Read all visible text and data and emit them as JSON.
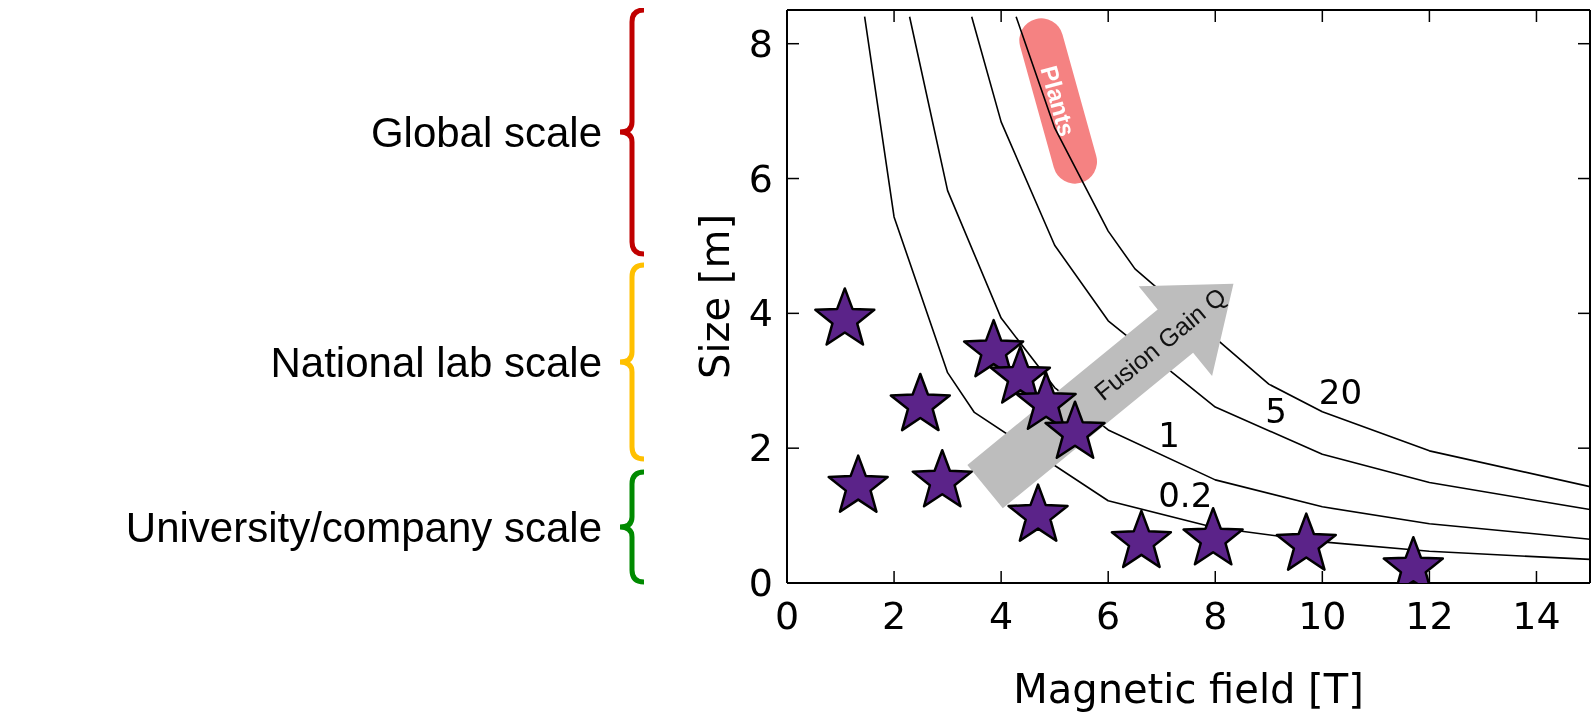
{
  "chart_data": {
    "type": "scatter",
    "xlabel": "Magnetic field [T]",
    "ylabel": "Size [m]",
    "xlim": [
      0,
      15
    ],
    "ylim": [
      0,
      8.5
    ],
    "xticks": [
      0,
      2,
      4,
      6,
      8,
      10,
      12,
      14
    ],
    "yticks": [
      0,
      2,
      4,
      6,
      8
    ],
    "annotations": [
      "Global scale",
      "National lab scale",
      "University/company scale",
      "Fusion Gain Q"
    ],
    "series": [
      {
        "type": "line",
        "name": "Plants",
        "color": "#f47b7b",
        "x": [
          4.75,
          5.38
        ],
        "values": [
          8.05,
          6.25
        ]
      },
      {
        "type": "line",
        "name": "0.2",
        "color": "#000000",
        "x": [
          1.45,
          2,
          3,
          3.5,
          6,
          8,
          10,
          12,
          15
        ],
        "values": [
          8.4,
          5.43,
          3.12,
          2.53,
          1.22,
          0.82,
          0.61,
          0.47,
          0.35
        ]
      },
      {
        "type": "line",
        "name": "1",
        "color": "#000000",
        "x": [
          2.29,
          3,
          4,
          5,
          6,
          8,
          10,
          12,
          15
        ],
        "values": [
          8.4,
          5.82,
          3.93,
          2.9,
          2.27,
          1.53,
          1.13,
          0.88,
          0.65
        ]
      },
      {
        "type": "line",
        "name": "5",
        "color": "#000000",
        "x": [
          3.45,
          4,
          5,
          6,
          8,
          10,
          12,
          15
        ],
        "values": [
          8.4,
          6.84,
          5.01,
          3.89,
          2.61,
          1.91,
          1.49,
          1.09
        ]
      },
      {
        "type": "line",
        "name": "20",
        "color": "#000000",
        "x": [
          4.28,
          5,
          6,
          6.5,
          9,
          10,
          12,
          15
        ],
        "values": [
          8.4,
          6.75,
          5.22,
          4.66,
          2.95,
          2.54,
          1.96,
          1.43
        ]
      },
      {
        "marker": "star",
        "color": "#5b2389",
        "x": [
          1.08,
          1.33,
          2.49,
          2.9,
          3.86,
          4.36,
          4.84,
          5.38,
          4.69,
          6.62,
          7.96,
          9.7,
          11.7
        ],
        "values": [
          3.91,
          1.43,
          2.64,
          1.51,
          3.44,
          3.05,
          2.66,
          2.23,
          1.0,
          0.61,
          0.65,
          0.57,
          0.22
        ]
      }
    ]
  }
}
